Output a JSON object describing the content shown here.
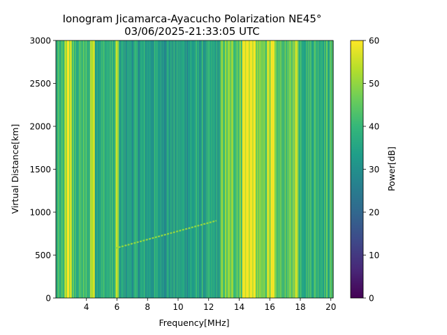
{
  "chart_data": {
    "type": "heatmap",
    "title": "Ionogram Jicamarca-Ayacucho Polarization NE45°",
    "subtitle": "03/06/2025-21:33:05 UTC",
    "xlabel": "Frequency[MHz]",
    "ylabel": "Virtual Distance[km]",
    "xlim": [
      2.0,
      20.15
    ],
    "ylim": [
      0,
      3000
    ],
    "x_ticks": [
      4,
      6,
      8,
      10,
      12,
      14,
      16,
      18,
      20
    ],
    "y_ticks": [
      0,
      500,
      1000,
      1500,
      2000,
      2500,
      3000
    ],
    "colorbar": {
      "label": "Power[dB]",
      "range": [
        0,
        60
      ],
      "ticks": [
        0,
        10,
        20,
        30,
        40,
        50,
        60
      ],
      "colormap": "viridis",
      "colors": [
        "#440154",
        "#482878",
        "#3e4989",
        "#31688e",
        "#26828e",
        "#1f9e89",
        "#35b779",
        "#6ece58",
        "#b5de2b",
        "#fde725"
      ]
    },
    "bands": [
      {
        "f0": 2.0,
        "f1": 2.55,
        "power": 38
      },
      {
        "f0": 2.55,
        "f1": 3.05,
        "power": 55
      },
      {
        "f0": 3.05,
        "f1": 4.25,
        "power": 40
      },
      {
        "f0": 4.25,
        "f1": 4.55,
        "power": 55
      },
      {
        "f0": 4.55,
        "f1": 5.9,
        "power": 38
      },
      {
        "f0": 5.9,
        "f1": 6.1,
        "power": 52
      },
      {
        "f0": 6.1,
        "f1": 12.8,
        "power": 34
      },
      {
        "f0": 12.8,
        "f1": 14.2,
        "power": 46
      },
      {
        "f0": 14.2,
        "f1": 15.1,
        "power": 58
      },
      {
        "f0": 15.1,
        "f1": 15.8,
        "power": 46
      },
      {
        "f0": 15.8,
        "f1": 16.3,
        "power": 56
      },
      {
        "f0": 16.3,
        "f1": 17.5,
        "power": 43
      },
      {
        "f0": 17.5,
        "f1": 17.9,
        "power": 52
      },
      {
        "f0": 17.9,
        "f1": 20.15,
        "power": 40
      }
    ],
    "trace": {
      "f_start": 5.9,
      "f_end": 12.5,
      "d_start": 580,
      "d_end": 900,
      "power": 50
    }
  }
}
